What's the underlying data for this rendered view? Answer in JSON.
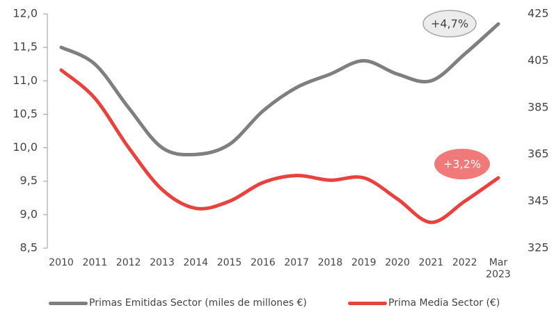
{
  "chart_data": {
    "type": "line",
    "categories": [
      "2010",
      "2011",
      "2012",
      "2013",
      "2014",
      "2015",
      "2016",
      "2017",
      "2018",
      "2019",
      "2020",
      "2021",
      "2022",
      "Mar 2023"
    ],
    "series": [
      {
        "name": "Primas Emitidas Sector (miles de millones €)",
        "color": "#7f7f7f",
        "axis": "y",
        "values": [
          11.5,
          11.25,
          10.6,
          10.0,
          9.9,
          10.05,
          10.55,
          10.9,
          11.1,
          11.3,
          11.1,
          11.0,
          11.4,
          11.85
        ]
      },
      {
        "name": "Prima Media Sector (€)",
        "color": "#e8423f",
        "axis": "y2",
        "values": [
          401,
          389,
          368,
          350,
          342,
          345,
          353,
          356,
          354,
          355,
          346,
          336,
          345,
          355
        ]
      }
    ],
    "ylim": [
      8.5,
      12.0
    ],
    "yticks": [
      {
        "value": 8.5,
        "label": "8,5"
      },
      {
        "value": 9.0,
        "label": "9,0"
      },
      {
        "value": 9.5,
        "label": "9,5"
      },
      {
        "value": 10.0,
        "label": "10,0"
      },
      {
        "value": 10.5,
        "label": "10,5"
      },
      {
        "value": 11.0,
        "label": "11,0"
      },
      {
        "value": 11.5,
        "label": "11,5"
      },
      {
        "value": 12.0,
        "label": "12,0"
      }
    ],
    "y2lim": [
      325,
      425
    ],
    "y2ticks": [
      325,
      345,
      365,
      385,
      405,
      425
    ],
    "annotations": [
      "+4,7%",
      "+3,2%"
    ],
    "legend": "bottom"
  }
}
